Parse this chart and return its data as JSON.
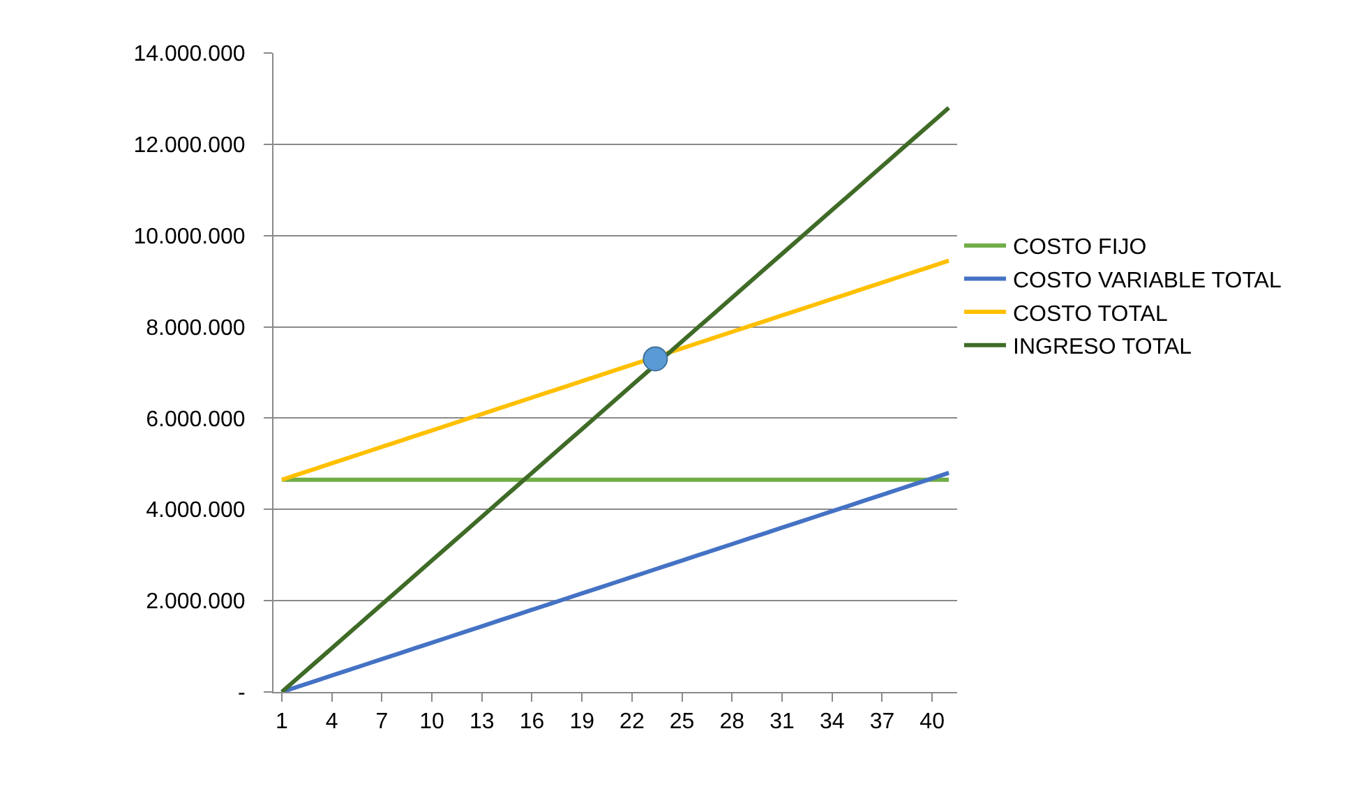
{
  "chart_data": {
    "type": "line",
    "x": [
      1,
      2,
      3,
      4,
      5,
      6,
      7,
      8,
      9,
      10,
      11,
      12,
      13,
      14,
      15,
      16,
      17,
      18,
      19,
      20,
      21,
      22,
      23,
      24,
      25,
      26,
      27,
      28,
      29,
      30,
      31,
      32,
      33,
      34,
      35,
      36,
      37,
      38,
      39,
      40,
      41
    ],
    "xlim": [
      0.5,
      41.5
    ],
    "xticks": [
      1,
      4,
      7,
      10,
      13,
      16,
      19,
      22,
      25,
      28,
      31,
      34,
      37,
      40
    ],
    "ylim": [
      0,
      14000000
    ],
    "yticks": [
      {
        "value": 0,
        "label": "-"
      },
      {
        "value": 2000000,
        "label": "2.000.000"
      },
      {
        "value": 4000000,
        "label": "4.000.000"
      },
      {
        "value": 6000000,
        "label": "6.000.000"
      },
      {
        "value": 8000000,
        "label": "8.000.000"
      },
      {
        "value": 10000000,
        "label": "10.000.000"
      },
      {
        "value": 12000000,
        "label": "12.000.000"
      },
      {
        "value": 14000000,
        "label": "14.000.000"
      }
    ],
    "grid": "y",
    "legend": "right",
    "marker": "none",
    "line_style": "solid",
    "series": [
      {
        "name": "COSTO FIJO",
        "color": "#70ad47",
        "values": [
          4650000,
          4650000,
          4650000,
          4650000,
          4650000,
          4650000,
          4650000,
          4650000,
          4650000,
          4650000,
          4650000,
          4650000,
          4650000,
          4650000,
          4650000,
          4650000,
          4650000,
          4650000,
          4650000,
          4650000,
          4650000,
          4650000,
          4650000,
          4650000,
          4650000,
          4650000,
          4650000,
          4650000,
          4650000,
          4650000,
          4650000,
          4650000,
          4650000,
          4650000,
          4650000,
          4650000,
          4650000,
          4650000,
          4650000,
          4650000,
          4650000
        ]
      },
      {
        "name": "COSTO VARIABLE TOTAL",
        "color": "#4472c4",
        "values": [
          0,
          120000,
          240000,
          360000,
          480000,
          600000,
          720000,
          840000,
          960000,
          1080000,
          1200000,
          1320000,
          1440000,
          1560000,
          1680000,
          1800000,
          1920000,
          2040000,
          2160000,
          2280000,
          2400000,
          2520000,
          2640000,
          2760000,
          2880000,
          3000000,
          3120000,
          3240000,
          3360000,
          3480000,
          3600000,
          3720000,
          3840000,
          3960000,
          4080000,
          4200000,
          4320000,
          4440000,
          4560000,
          4680000,
          4800000
        ]
      },
      {
        "name": "COSTO TOTAL",
        "color": "#ffc000",
        "values": [
          4650000,
          4770000,
          4890000,
          5010000,
          5130000,
          5250000,
          5370000,
          5490000,
          5610000,
          5730000,
          5850000,
          5970000,
          6090000,
          6210000,
          6330000,
          6450000,
          6570000,
          6690000,
          6810000,
          6930000,
          7050000,
          7170000,
          7290000,
          7410000,
          7530000,
          7650000,
          7770000,
          7890000,
          8010000,
          8130000,
          8250000,
          8370000,
          8490000,
          8610000,
          8730000,
          8850000,
          8970000,
          9090000,
          9210000,
          9330000,
          9450000
        ]
      },
      {
        "name": "INGRESO TOTAL",
        "color": "#3f6b27",
        "values": [
          0,
          320000,
          640000,
          960000,
          1280000,
          1600000,
          1920000,
          2240000,
          2560000,
          2880000,
          3200000,
          3520000,
          3840000,
          4160000,
          4480000,
          4800000,
          5120000,
          5440000,
          5760000,
          6080000,
          6400000,
          6720000,
          7040000,
          7360000,
          7680000,
          8000000,
          8320000,
          8640000,
          8960000,
          9280000,
          9600000,
          9920000,
          10240000,
          10560000,
          10880000,
          11200000,
          11520000,
          11840000,
          12160000,
          12480000,
          12800000
        ]
      },
      {
        "type": "scatter",
        "marker": "circle",
        "color": "#5b9bd5",
        "x": [
          23.4
        ],
        "values": [
          7300000
        ]
      }
    ]
  }
}
